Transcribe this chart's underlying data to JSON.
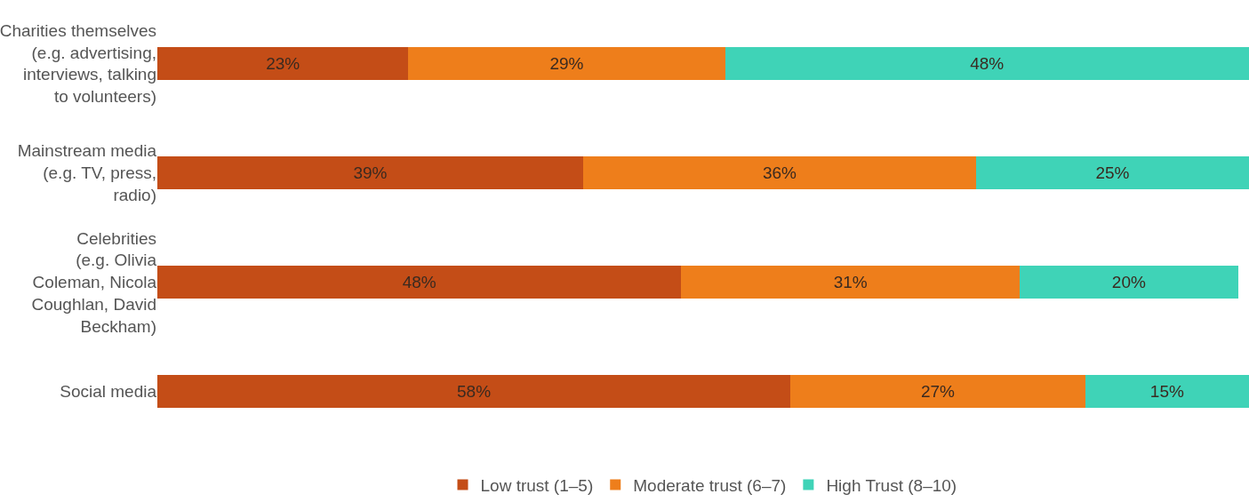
{
  "chart_data": {
    "type": "bar",
    "orientation": "horizontal",
    "stacked": true,
    "legend": "bottom",
    "categories": [
      "Charities themselves (e.g. advertising, interviews, talking to volunteers)",
      "Mainstream media (e.g. TV, press, radio)",
      "Celebrities (e.g. Olivia Coleman, Nicola Coughlan, David Beckham)",
      "Social media"
    ],
    "series": [
      {
        "name": "Low trust (1–5)",
        "color": "#c44d17",
        "values": [
          23,
          39,
          48,
          58
        ],
        "value_labels": [
          "23%",
          "39%",
          "48%",
          "58%"
        ]
      },
      {
        "name": "Moderate trust (6–7)",
        "color": "#ee7e1b",
        "values": [
          29,
          36,
          31,
          27
        ],
        "value_labels": [
          "29%",
          "36%",
          "31%",
          "27%"
        ]
      },
      {
        "name": "High Trust (8–10)",
        "color": "#3fd3b7",
        "values": [
          48,
          25,
          20,
          15
        ],
        "value_labels": [
          "48%",
          "25%",
          "20%",
          "15%"
        ]
      }
    ]
  }
}
